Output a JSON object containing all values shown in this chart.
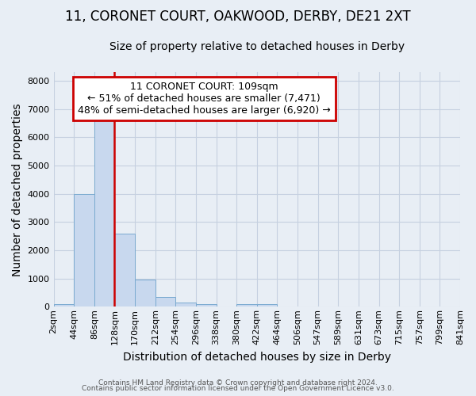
{
  "title": "11, CORONET COURT, OAKWOOD, DERBY, DE21 2XT",
  "subtitle": "Size of property relative to detached houses in Derby",
  "xlabel": "Distribution of detached houses by size in Derby",
  "ylabel": "Number of detached properties",
  "bin_labels": [
    "2sqm",
    "44sqm",
    "86sqm",
    "128sqm",
    "170sqm",
    "212sqm",
    "254sqm",
    "296sqm",
    "338sqm",
    "380sqm",
    "422sqm",
    "464sqm",
    "506sqm",
    "547sqm",
    "589sqm",
    "631sqm",
    "673sqm",
    "715sqm",
    "757sqm",
    "799sqm",
    "841sqm"
  ],
  "bar_values": [
    100,
    4000,
    6600,
    2600,
    950,
    330,
    150,
    100,
    0,
    100,
    100,
    0,
    0,
    0,
    0,
    0,
    0,
    0,
    0,
    0
  ],
  "bar_color": "#c8d8ee",
  "bar_edge_color": "#7aaad0",
  "vline_color": "#cc0000",
  "vline_x_index": 2.55,
  "annotation_text": "11 CORONET COURT: 109sqm\n← 51% of detached houses are smaller (7,471)\n48% of semi-detached houses are larger (6,920) →",
  "annotation_box_color": "#cc0000",
  "fig_background_color": "#e8eef5",
  "ax_background_color": "#e8eef5",
  "grid_color": "#c5d0e0",
  "ylim": [
    0,
    8300
  ],
  "yticks": [
    0,
    1000,
    2000,
    3000,
    4000,
    5000,
    6000,
    7000,
    8000
  ],
  "footer1": "Contains HM Land Registry data © Crown copyright and database right 2024.",
  "footer2": "Contains public sector information licensed under the Open Government Licence v3.0.",
  "title_fontsize": 12,
  "subtitle_fontsize": 10,
  "axis_label_fontsize": 10,
  "tick_fontsize": 8,
  "annotation_fontsize": 9
}
